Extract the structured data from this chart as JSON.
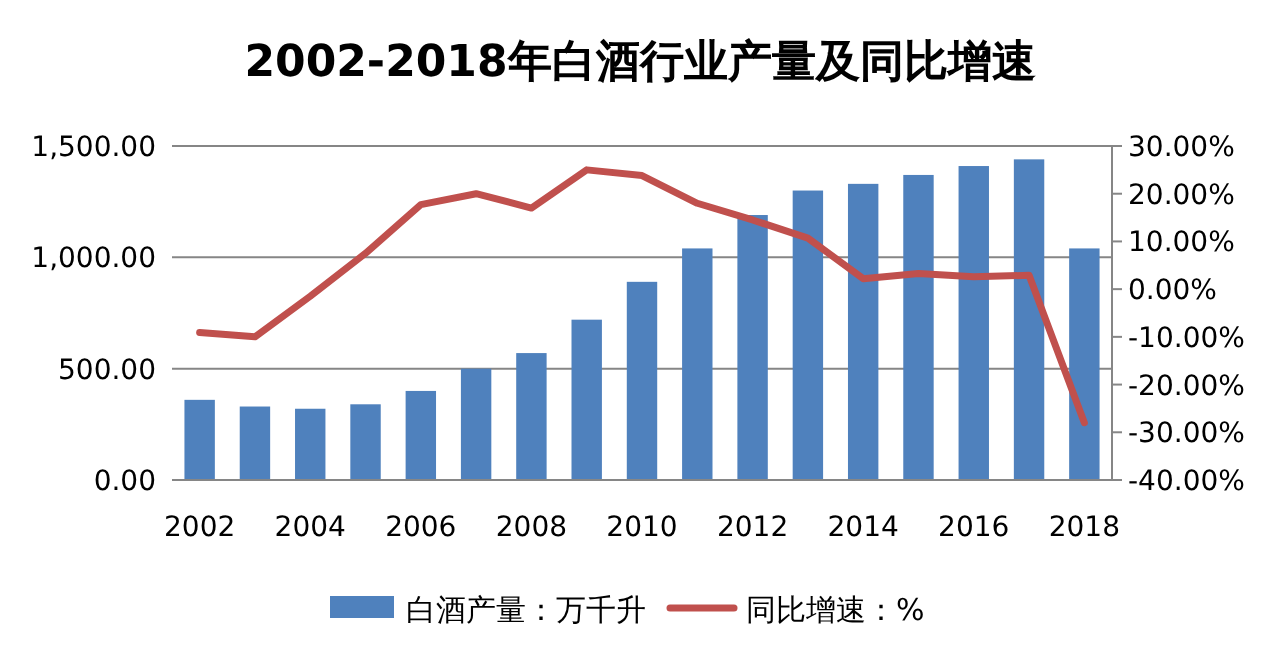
{
  "chart_data": {
    "type": "bar",
    "title": "2002-2018年白酒行业产量及同比增速",
    "categories": [
      "2002",
      null,
      "2004",
      null,
      "2006",
      null,
      "2008",
      null,
      "2010",
      null,
      "2012",
      null,
      "2014",
      null,
      "2016",
      null,
      "2018"
    ],
    "series": [
      {
        "name": "白酒产量：万千升",
        "color": "#4f81bd",
        "values": [
          360,
          330,
          320,
          340,
          400,
          500,
          570,
          720,
          890,
          1040,
          1190,
          1300,
          1330,
          1370,
          1410,
          1440,
          1040
        ]
      },
      {
        "name": "同比增速：%",
        "type": "line",
        "axis": "y2",
        "color": "#c0504d",
        "values": [
          -9.1,
          -10,
          -1.5,
          7.5,
          17.7,
          20,
          17,
          25,
          23.8,
          18,
          14.5,
          10.7,
          2.2,
          3.3,
          2.6,
          2.9,
          -28
        ]
      }
    ],
    "ylim": [
      0,
      1500
    ],
    "yticks": [
      {
        "value": 0,
        "label": "0.00"
      },
      {
        "value": 500,
        "label": "500.00"
      },
      {
        "value": 1000,
        "label": "1,000.00"
      },
      {
        "value": 1500,
        "label": "1,500.00"
      }
    ],
    "y2lim": [
      -40,
      30
    ],
    "y2ticks": [
      {
        "value": -40,
        "label": "-40.00%"
      },
      {
        "value": -30,
        "label": "-30.00%"
      },
      {
        "value": -20,
        "label": "-20.00%"
      },
      {
        "value": -10,
        "label": "-10.00%"
      },
      {
        "value": 0,
        "label": "0.00%"
      },
      {
        "value": 10,
        "label": "10.00%"
      },
      {
        "value": 20,
        "label": "20.00%"
      },
      {
        "value": 30,
        "label": "30.00%"
      }
    ],
    "grid": "y",
    "legend": "bottom",
    "marker": "none",
    "line_style": "solid"
  }
}
